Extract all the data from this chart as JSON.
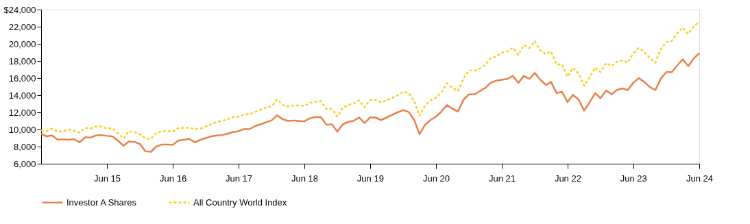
{
  "chart_data": {
    "type": "line",
    "x": [
      "2014-06",
      "2014-07",
      "2014-08",
      "2014-09",
      "2014-10",
      "2014-11",
      "2014-12",
      "2015-01",
      "2015-02",
      "2015-03",
      "2015-04",
      "2015-05",
      "2015-06",
      "2015-07",
      "2015-08",
      "2015-09",
      "2015-10",
      "2015-11",
      "2015-12",
      "2016-01",
      "2016-02",
      "2016-03",
      "2016-04",
      "2016-05",
      "2016-06",
      "2016-07",
      "2016-08",
      "2016-09",
      "2016-10",
      "2016-11",
      "2016-12",
      "2017-01",
      "2017-02",
      "2017-03",
      "2017-04",
      "2017-05",
      "2017-06",
      "2017-07",
      "2017-08",
      "2017-09",
      "2017-10",
      "2017-11",
      "2017-12",
      "2018-01",
      "2018-02",
      "2018-03",
      "2018-04",
      "2018-05",
      "2018-06",
      "2018-07",
      "2018-08",
      "2018-09",
      "2018-10",
      "2018-11",
      "2018-12",
      "2019-01",
      "2019-02",
      "2019-03",
      "2019-04",
      "2019-05",
      "2019-06",
      "2019-07",
      "2019-08",
      "2019-09",
      "2019-10",
      "2019-11",
      "2019-12",
      "2020-01",
      "2020-02",
      "2020-03",
      "2020-04",
      "2020-05",
      "2020-06",
      "2020-07",
      "2020-08",
      "2020-09",
      "2020-10",
      "2020-11",
      "2020-12",
      "2021-01",
      "2021-02",
      "2021-03",
      "2021-04",
      "2021-05",
      "2021-06",
      "2021-07",
      "2021-08",
      "2021-09",
      "2021-10",
      "2021-11",
      "2021-12",
      "2022-01",
      "2022-02",
      "2022-03",
      "2022-04",
      "2022-05",
      "2022-06",
      "2022-07",
      "2022-08",
      "2022-09",
      "2022-10",
      "2022-11",
      "2022-12",
      "2023-01",
      "2023-02",
      "2023-03",
      "2023-04",
      "2023-05",
      "2023-06",
      "2023-07",
      "2023-08",
      "2023-09",
      "2023-10",
      "2023-11",
      "2023-12",
      "2024-01",
      "2024-02",
      "2024-03",
      "2024-04",
      "2024-05",
      "2024-06"
    ],
    "series": [
      {
        "name": "Investor A Shares",
        "color": "#e8804a",
        "line_style": "solid",
        "values": [
          9500,
          9200,
          9300,
          8800,
          8850,
          8800,
          8850,
          8500,
          9100,
          9050,
          9300,
          9350,
          9250,
          9200,
          8700,
          8100,
          8600,
          8550,
          8300,
          7450,
          7400,
          8000,
          8250,
          8250,
          8200,
          8700,
          8800,
          8900,
          8500,
          8800,
          9000,
          9200,
          9300,
          9350,
          9500,
          9700,
          9800,
          10050,
          10050,
          10400,
          10600,
          10850,
          11050,
          11650,
          11200,
          11000,
          11050,
          11000,
          10950,
          11300,
          11450,
          11450,
          10550,
          10600,
          9750,
          10600,
          10900,
          11000,
          11400,
          10750,
          11400,
          11400,
          11100,
          11400,
          11700,
          12000,
          12250,
          12050,
          11100,
          9450,
          10550,
          11100,
          11500,
          12100,
          12850,
          12400,
          12100,
          13500,
          14100,
          14100,
          14500,
          14850,
          15450,
          15700,
          15800,
          15900,
          16250,
          15450,
          16250,
          15900,
          16600,
          15800,
          15200,
          15550,
          14250,
          14400,
          13200,
          14050,
          13500,
          12200,
          13150,
          14250,
          13650,
          14550,
          14100,
          14600,
          14800,
          14600,
          15450,
          16000,
          15550,
          14950,
          14600,
          15950,
          16700,
          16700,
          17500,
          18200,
          17400,
          18300,
          18900
        ]
      },
      {
        "name": "All Country World Index",
        "color": "#f5d020",
        "line_style": "dashed",
        "values": [
          9900,
          9800,
          10100,
          9750,
          9800,
          10000,
          9850,
          9650,
          10200,
          10100,
          10350,
          10350,
          10100,
          10150,
          9550,
          8950,
          9800,
          9700,
          9450,
          8950,
          8900,
          9600,
          9800,
          9800,
          9750,
          10150,
          10200,
          10200,
          10050,
          10100,
          10350,
          10600,
          10900,
          11000,
          11200,
          11450,
          11500,
          11750,
          11800,
          12050,
          12300,
          12550,
          12700,
          13500,
          12850,
          12700,
          12800,
          12800,
          12750,
          13100,
          13250,
          13300,
          12400,
          12400,
          11500,
          12550,
          12900,
          13000,
          13400,
          12600,
          13450,
          13450,
          13150,
          13400,
          13700,
          14000,
          14400,
          14250,
          13300,
          11600,
          12800,
          13400,
          13700,
          14350,
          15400,
          14850,
          14500,
          16000,
          16900,
          16850,
          17150,
          17550,
          18350,
          18500,
          18950,
          19100,
          19550,
          18700,
          19850,
          19500,
          20300,
          19200,
          18800,
          19100,
          17600,
          17600,
          16150,
          17200,
          16550,
          15100,
          16050,
          17250,
          16700,
          17750,
          17400,
          17900,
          18050,
          17800,
          18900,
          19500,
          19050,
          18350,
          17800,
          19400,
          20200,
          20350,
          21300,
          21900,
          21150,
          22000,
          22600
        ]
      }
    ],
    "xlim": [
      "2014-06",
      "2024-06"
    ],
    "xticks": [
      {
        "value": "2015-06",
        "label": "Jun 15"
      },
      {
        "value": "2016-06",
        "label": "Jun 16"
      },
      {
        "value": "2017-06",
        "label": "Jun 17"
      },
      {
        "value": "2018-06",
        "label": "Jun 18"
      },
      {
        "value": "2019-06",
        "label": "Jun 19"
      },
      {
        "value": "2020-06",
        "label": "Jun 20"
      },
      {
        "value": "2021-06",
        "label": "Jun 21"
      },
      {
        "value": "2022-06",
        "label": "Jun 22"
      },
      {
        "value": "2023-06",
        "label": "Jun 23"
      },
      {
        "value": "2024-06",
        "label": "Jun 24"
      }
    ],
    "ylim": [
      6000,
      24000
    ],
    "yticks": [
      {
        "value": 6000,
        "label": "6,000"
      },
      {
        "value": 8000,
        "label": "8,000"
      },
      {
        "value": 10000,
        "label": "10,000"
      },
      {
        "value": 12000,
        "label": "12,000"
      },
      {
        "value": 14000,
        "label": "14,000"
      },
      {
        "value": 16000,
        "label": "16,000"
      },
      {
        "value": 18000,
        "label": "18,000"
      },
      {
        "value": 20000,
        "label": "20,000"
      },
      {
        "value": 22000,
        "label": "22,000"
      },
      {
        "value": 24000,
        "label": "$24,000"
      }
    ],
    "grid": false,
    "legend": "bottom",
    "marker": "none"
  }
}
